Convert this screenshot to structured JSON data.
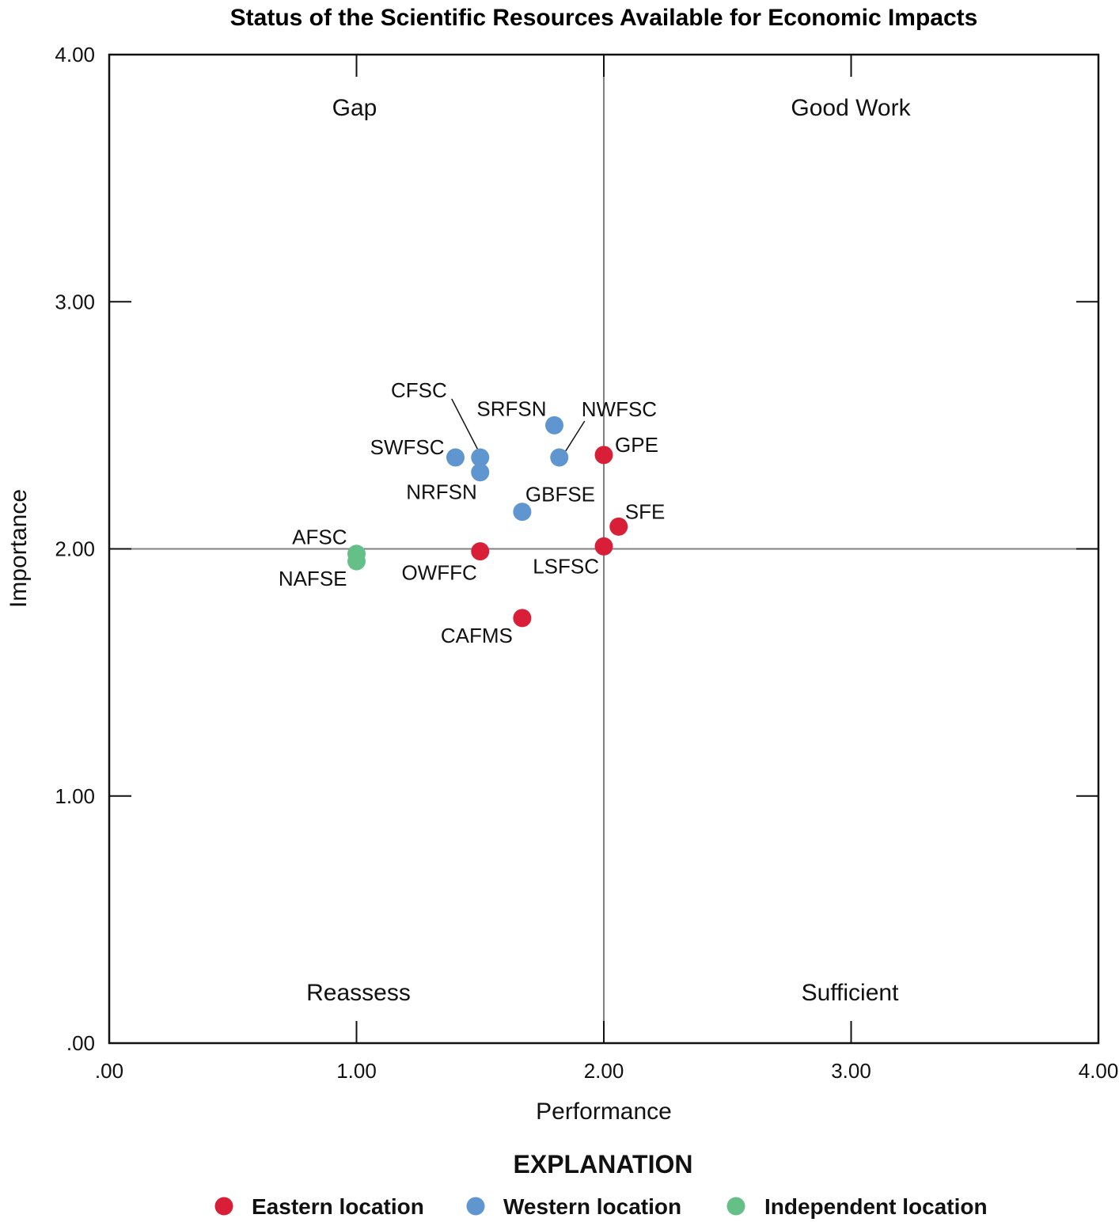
{
  "chart_data": {
    "type": "scatter",
    "title": "Status of the Scientific Resources Available for Economic Impacts",
    "xlabel": "Performance",
    "ylabel": "Importance",
    "xlim": [
      0,
      4
    ],
    "ylim": [
      0,
      4
    ],
    "x_ticks": [
      ".00",
      "1.00",
      "2.00",
      "3.00",
      "4.00"
    ],
    "y_ticks": [
      ".00",
      "1.00",
      "2.00",
      "3.00",
      "4.00"
    ],
    "x_tick_values": [
      0,
      1,
      2,
      3,
      4
    ],
    "y_tick_values": [
      0,
      1,
      2,
      3,
      4
    ],
    "reference_lines": {
      "x": 2.0,
      "y": 2.0
    },
    "grid": false,
    "quadrants": {
      "top_left": "Gap",
      "top_right": "Good Work",
      "bottom_left": "Reassess",
      "bottom_right": "Sufficient"
    },
    "legend": {
      "title": "EXPLANATION",
      "placement": "bottom",
      "entries": [
        {
          "key": "eastern",
          "label": "Eastern location",
          "color": "#d91f38"
        },
        {
          "key": "western",
          "label": "Western location",
          "color": "#5f96cf"
        },
        {
          "key": "independent",
          "label": "Independent location",
          "color": "#65c088"
        }
      ]
    },
    "points": [
      {
        "label": "SRFSN",
        "x": 1.8,
        "y": 2.5,
        "group": "western"
      },
      {
        "label": "NWFSC",
        "x": 1.82,
        "y": 2.37,
        "group": "western"
      },
      {
        "label": "CFSC",
        "x": 1.5,
        "y": 2.37,
        "group": "western"
      },
      {
        "label": "SWFSC",
        "x": 1.4,
        "y": 2.37,
        "group": "western"
      },
      {
        "label": "NRFSN",
        "x": 1.5,
        "y": 2.31,
        "group": "western"
      },
      {
        "label": "GBFSE",
        "x": 1.67,
        "y": 2.15,
        "group": "western"
      },
      {
        "label": "GPE",
        "x": 2.0,
        "y": 2.38,
        "group": "eastern"
      },
      {
        "label": "SFE",
        "x": 2.06,
        "y": 2.09,
        "group": "eastern"
      },
      {
        "label": "LSFSC",
        "x": 2.0,
        "y": 2.01,
        "group": "eastern"
      },
      {
        "label": "OWFFC",
        "x": 1.5,
        "y": 1.99,
        "group": "eastern"
      },
      {
        "label": "CAFMS",
        "x": 1.67,
        "y": 1.72,
        "group": "eastern"
      },
      {
        "label": "AFSC",
        "x": 1.0,
        "y": 1.98,
        "group": "independent"
      },
      {
        "label": "NAFSE",
        "x": 1.0,
        "y": 1.95,
        "group": "independent"
      }
    ]
  }
}
